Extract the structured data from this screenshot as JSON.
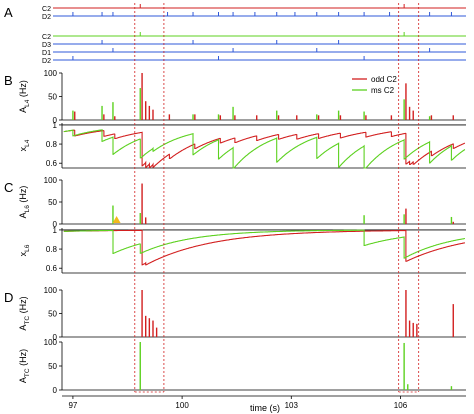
{
  "chart_data": {
    "type": "line",
    "x_axis": {
      "label": "time (s)",
      "range": [
        96.7,
        107.8
      ],
      "ticks": [
        97,
        100,
        103,
        106
      ]
    },
    "colors": {
      "odd": "#d21f1f",
      "ms": "#5cd11f",
      "d2": "#2f58d8",
      "axis": "#000000",
      "box": "#d21f1f"
    },
    "legend": {
      "placement": "top-right",
      "entries": [
        "odd C2",
        "ms C2"
      ]
    },
    "highlight_windows": [
      [
        98.7,
        99.5
      ],
      [
        105.95,
        106.5
      ]
    ],
    "panel_letters": [
      "A",
      "B",
      "C",
      "D"
    ],
    "spike_rasters": {
      "odd_protocol": [
        {
          "name": "C2",
          "color": "red",
          "times": [
            98.85,
            106.1
          ]
        },
        {
          "name": "D2",
          "color": "blue",
          "times": [
            97.0,
            97.8,
            98.1,
            99.6,
            100.3,
            101.0,
            101.4,
            102.0,
            102.6,
            103.1,
            103.7,
            104.3,
            105.0,
            105.7,
            106.8,
            107.4
          ]
        }
      ],
      "ms_protocol": [
        {
          "name": "C2",
          "color": "green",
          "times": [
            98.85,
            106.1
          ]
        },
        {
          "name": "D3",
          "color": "blue",
          "times": [
            97.8,
            100.3,
            102.6,
            104.3
          ]
        },
        {
          "name": "D1",
          "color": "blue",
          "times": [
            98.1,
            101.4,
            103.7,
            106.8
          ]
        },
        {
          "name": "D2",
          "color": "blue",
          "times": [
            97.0,
            101.0,
            105.0
          ]
        }
      ]
    },
    "panels": [
      {
        "id": "A_L4",
        "ylabel": "A_L4 (Hz)",
        "ylim": [
          0,
          100
        ],
        "yticks": [
          0,
          50,
          100
        ],
        "series": [
          {
            "name": "odd C2",
            "color": "red",
            "events": [
              {
                "t": 97.05,
                "h": 18
              },
              {
                "t": 97.85,
                "h": 12
              },
              {
                "t": 98.15,
                "h": 8
              },
              {
                "t": 98.9,
                "h": 100
              },
              {
                "t": 99.0,
                "h": 40
              },
              {
                "t": 99.1,
                "h": 30
              },
              {
                "t": 99.2,
                "h": 22
              },
              {
                "t": 99.65,
                "h": 12
              },
              {
                "t": 100.35,
                "h": 12
              },
              {
                "t": 101.05,
                "h": 10
              },
              {
                "t": 101.45,
                "h": 10
              },
              {
                "t": 102.05,
                "h": 10
              },
              {
                "t": 102.65,
                "h": 10
              },
              {
                "t": 103.15,
                "h": 10
              },
              {
                "t": 103.75,
                "h": 10
              },
              {
                "t": 104.35,
                "h": 10
              },
              {
                "t": 105.05,
                "h": 10
              },
              {
                "t": 105.75,
                "h": 10
              },
              {
                "t": 106.15,
                "h": 78
              },
              {
                "t": 106.25,
                "h": 28
              },
              {
                "t": 106.35,
                "h": 20
              },
              {
                "t": 106.85,
                "h": 10
              },
              {
                "t": 107.45,
                "h": 10
              }
            ]
          },
          {
            "name": "ms C2",
            "color": "green",
            "events": [
              {
                "t": 97.0,
                "h": 20
              },
              {
                "t": 97.8,
                "h": 30
              },
              {
                "t": 98.1,
                "h": 38
              },
              {
                "t": 98.85,
                "h": 68
              },
              {
                "t": 100.3,
                "h": 12
              },
              {
                "t": 101.0,
                "h": 12
              },
              {
                "t": 101.4,
                "h": 28
              },
              {
                "t": 102.6,
                "h": 20
              },
              {
                "t": 103.7,
                "h": 12
              },
              {
                "t": 104.3,
                "h": 20
              },
              {
                "t": 105.0,
                "h": 18
              },
              {
                "t": 106.1,
                "h": 44
              },
              {
                "t": 106.8,
                "h": 8
              }
            ]
          }
        ]
      },
      {
        "id": "x_L4",
        "ylabel": "x_L4",
        "ylim": [
          0.55,
          1.02
        ],
        "yticks": [
          0.6,
          0.8,
          1
        ],
        "series": [
          {
            "name": "odd C2",
            "color": "red",
            "tau": 1.2,
            "start": 0.93,
            "drops": [
              {
                "t": 97.05,
                "d": 0.06
              },
              {
                "t": 97.85,
                "d": 0.06
              },
              {
                "t": 98.15,
                "d": 0.05
              },
              {
                "t": 98.9,
                "d": 0.35
              },
              {
                "t": 99.0,
                "d": 0.05
              },
              {
                "t": 99.1,
                "d": 0.04
              },
              {
                "t": 99.2,
                "d": 0.03
              },
              {
                "t": 99.65,
                "d": 0.05
              },
              {
                "t": 100.35,
                "d": 0.05
              },
              {
                "t": 101.05,
                "d": 0.05
              },
              {
                "t": 101.45,
                "d": 0.05
              },
              {
                "t": 102.05,
                "d": 0.05
              },
              {
                "t": 102.65,
                "d": 0.05
              },
              {
                "t": 103.15,
                "d": 0.05
              },
              {
                "t": 103.75,
                "d": 0.05
              },
              {
                "t": 104.35,
                "d": 0.05
              },
              {
                "t": 105.05,
                "d": 0.05
              },
              {
                "t": 105.75,
                "d": 0.05
              },
              {
                "t": 106.15,
                "d": 0.32
              },
              {
                "t": 106.25,
                "d": 0.04
              },
              {
                "t": 106.35,
                "d": 0.03
              },
              {
                "t": 106.85,
                "d": 0.05
              },
              {
                "t": 107.45,
                "d": 0.05
              }
            ]
          },
          {
            "name": "ms C2",
            "color": "green",
            "tau": 1.0,
            "start": 0.93,
            "drops": [
              {
                "t": 97.0,
                "d": 0.06
              },
              {
                "t": 97.8,
                "d": 0.12
              },
              {
                "t": 98.1,
                "d": 0.18
              },
              {
                "t": 98.85,
                "d": 0.2
              },
              {
                "t": 99.2,
                "d": 0.03
              },
              {
                "t": 100.3,
                "d": 0.22
              },
              {
                "t": 101.0,
                "d": 0.2
              },
              {
                "t": 101.4,
                "d": 0.22
              },
              {
                "t": 102.6,
                "d": 0.25
              },
              {
                "t": 103.7,
                "d": 0.22
              },
              {
                "t": 104.3,
                "d": 0.25
              },
              {
                "t": 105.0,
                "d": 0.25
              },
              {
                "t": 106.1,
                "d": 0.2
              },
              {
                "t": 106.8,
                "d": 0.22
              },
              {
                "t": 107.4,
                "d": 0.15
              }
            ]
          }
        ]
      },
      {
        "id": "A_L6",
        "ylabel": "A_L6 (Hz)",
        "ylim": [
          0,
          100
        ],
        "yticks": [
          0,
          50,
          100
        ],
        "marker": {
          "t": 98.2,
          "color": "#f2b91c"
        },
        "series": [
          {
            "name": "odd C2",
            "color": "red",
            "events": [
              {
                "t": 98.9,
                "h": 92
              },
              {
                "t": 99.0,
                "h": 15
              },
              {
                "t": 106.15,
                "h": 35
              },
              {
                "t": 107.45,
                "h": 5
              }
            ]
          },
          {
            "name": "ms C2",
            "color": "green",
            "events": [
              {
                "t": 98.1,
                "h": 42
              },
              {
                "t": 98.85,
                "h": 25
              },
              {
                "t": 105.0,
                "h": 20
              },
              {
                "t": 106.1,
                "h": 22
              },
              {
                "t": 107.4,
                "h": 16
              }
            ]
          }
        ]
      },
      {
        "id": "x_L6",
        "ylabel": "x_L6",
        "ylim": [
          0.55,
          1.02
        ],
        "yticks": [
          0.6,
          0.8,
          1
        ],
        "series": [
          {
            "name": "odd C2",
            "color": "red",
            "tau": 1.8,
            "start": 0.985,
            "drops": [
              {
                "t": 98.9,
                "d": 0.36
              },
              {
                "t": 99.0,
                "d": 0.02
              },
              {
                "t": 106.15,
                "d": 0.32
              }
            ]
          },
          {
            "name": "ms C2",
            "color": "green",
            "tau": 1.4,
            "start": 0.985,
            "drops": [
              {
                "t": 98.1,
                "d": 0.24
              },
              {
                "t": 98.85,
                "d": 0.1
              },
              {
                "t": 105.0,
                "d": 0.16
              },
              {
                "t": 106.1,
                "d": 0.22
              }
            ]
          }
        ]
      },
      {
        "id": "A_TC_odd",
        "ylabel": "A_TC (Hz)",
        "ylim": [
          0,
          100
        ],
        "yticks": [
          0,
          50,
          100
        ],
        "series": [
          {
            "name": "odd C2",
            "color": "red",
            "events": [
              {
                "t": 98.9,
                "h": 100
              },
              {
                "t": 99.0,
                "h": 45
              },
              {
                "t": 99.1,
                "h": 40
              },
              {
                "t": 99.2,
                "h": 35
              },
              {
                "t": 99.3,
                "h": 20
              },
              {
                "t": 106.15,
                "h": 100
              },
              {
                "t": 106.25,
                "h": 35
              },
              {
                "t": 106.35,
                "h": 30
              },
              {
                "t": 106.45,
                "h": 28
              },
              {
                "t": 107.45,
                "h": 70
              }
            ]
          }
        ]
      },
      {
        "id": "A_TC_ms",
        "ylabel": "A_TC (Hz)",
        "ylim": [
          0,
          100
        ],
        "yticks": [
          0,
          50,
          100
        ],
        "series": [
          {
            "name": "ms C2",
            "color": "green",
            "events": [
              {
                "t": 98.85,
                "h": 100
              },
              {
                "t": 106.1,
                "h": 98
              },
              {
                "t": 106.2,
                "h": 12
              },
              {
                "t": 107.4,
                "h": 8
              }
            ]
          }
        ]
      }
    ]
  }
}
